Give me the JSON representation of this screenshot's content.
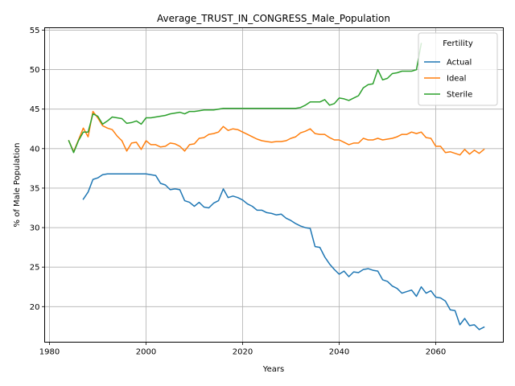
{
  "chart_data": {
    "type": "line",
    "title": "Average_TRUST_IN_CONGRESS_Male_Population",
    "xlabel": "Years",
    "ylabel": "% of Male Population",
    "xlim": [
      1979,
      2074
    ],
    "ylim": [
      15.5,
      55.3
    ],
    "xticks": [
      1980,
      2000,
      2020,
      2040,
      2060
    ],
    "yticks": [
      20,
      25,
      30,
      35,
      40,
      45,
      50,
      55
    ],
    "grid": true,
    "legend": {
      "title": "Fertility",
      "position": "top-right"
    },
    "series": [
      {
        "name": "Actual",
        "color": "#1f77b4",
        "x": [
          1987,
          1988,
          1989,
          1990,
          1991,
          1992,
          1993,
          1994,
          1995,
          1996,
          1997,
          1998,
          1999,
          2000,
          2001,
          2002,
          2003,
          2004,
          2005,
          2006,
          2007,
          2008,
          2009,
          2010,
          2011,
          2012,
          2013,
          2014,
          2015,
          2016,
          2017,
          2018,
          2019,
          2020,
          2021,
          2022,
          2023,
          2024,
          2025,
          2026,
          2027,
          2028,
          2029,
          2030,
          2031,
          2032,
          2033,
          2034,
          2035,
          2036,
          2037,
          2038,
          2039,
          2040,
          2041,
          2042,
          2043,
          2044,
          2045,
          2046,
          2047,
          2048,
          2049,
          2050,
          2051,
          2052,
          2053,
          2054,
          2055,
          2056,
          2057,
          2058,
          2059,
          2060,
          2061,
          2062,
          2063,
          2064,
          2065,
          2066,
          2067,
          2068,
          2069,
          2070
        ],
        "values": [
          33.6,
          34.5,
          36.1,
          36.3,
          36.7,
          36.8,
          36.8,
          36.8,
          36.8,
          36.8,
          36.8,
          36.8,
          36.8,
          36.8,
          36.7,
          36.6,
          35.6,
          35.4,
          34.8,
          34.9,
          34.8,
          33.4,
          33.2,
          32.7,
          33.2,
          32.6,
          32.5,
          33.1,
          33.4,
          34.9,
          33.8,
          34.0,
          33.8,
          33.5,
          33.0,
          32.7,
          32.2,
          32.2,
          31.9,
          31.8,
          31.6,
          31.7,
          31.2,
          30.9,
          30.5,
          30.2,
          30.0,
          29.9,
          27.6,
          27.5,
          26.3,
          25.4,
          24.7,
          24.1,
          24.5,
          23.8,
          24.4,
          24.3,
          24.7,
          24.8,
          24.6,
          24.5,
          23.4,
          23.2,
          22.6,
          22.3,
          21.7,
          21.9,
          22.1,
          21.3,
          22.5,
          21.7,
          22.0,
          21.2,
          21.1,
          20.7,
          19.6,
          19.5,
          17.7,
          18.5,
          17.6,
          17.7,
          17.1,
          17.4
        ]
      },
      {
        "name": "Ideal",
        "color": "#ff7f0e",
        "x": [
          1984,
          1985,
          1986,
          1987,
          1988,
          1989,
          1990,
          1991,
          1992,
          1993,
          1994,
          1995,
          1996,
          1997,
          1998,
          1999,
          2000,
          2001,
          2002,
          2003,
          2004,
          2005,
          2006,
          2007,
          2008,
          2009,
          2010,
          2011,
          2012,
          2013,
          2014,
          2015,
          2016,
          2017,
          2018,
          2019,
          2020,
          2021,
          2022,
          2023,
          2024,
          2025,
          2026,
          2027,
          2028,
          2029,
          2030,
          2031,
          2032,
          2033,
          2034,
          2035,
          2036,
          2037,
          2038,
          2039,
          2040,
          2041,
          2042,
          2043,
          2044,
          2045,
          2046,
          2047,
          2048,
          2049,
          2050,
          2051,
          2052,
          2053,
          2054,
          2055,
          2056,
          2057,
          2058,
          2059,
          2060,
          2061,
          2062,
          2063,
          2064,
          2065,
          2066,
          2067,
          2068,
          2069,
          2070
        ],
        "values": [
          41.0,
          39.6,
          41.1,
          42.6,
          41.5,
          44.7,
          43.9,
          42.9,
          42.6,
          42.4,
          41.6,
          41.0,
          39.7,
          40.7,
          40.8,
          39.9,
          41.0,
          40.5,
          40.5,
          40.2,
          40.3,
          40.7,
          40.6,
          40.3,
          39.7,
          40.5,
          40.6,
          41.3,
          41.4,
          41.8,
          41.9,
          42.1,
          42.8,
          42.3,
          42.5,
          42.4,
          42.1,
          41.8,
          41.5,
          41.2,
          41.0,
          40.9,
          40.8,
          40.9,
          40.9,
          41.0,
          41.3,
          41.5,
          42.0,
          42.2,
          42.5,
          41.9,
          41.8,
          41.8,
          41.4,
          41.1,
          41.1,
          40.8,
          40.5,
          40.7,
          40.7,
          41.3,
          41.1,
          41.1,
          41.3,
          41.1,
          41.2,
          41.3,
          41.5,
          41.8,
          41.8,
          42.1,
          41.9,
          42.1,
          41.4,
          41.3,
          40.3,
          40.3,
          39.5,
          39.6,
          39.4,
          39.2,
          39.9,
          39.3,
          39.8,
          39.4,
          39.9
        ]
      },
      {
        "name": "Sterile",
        "color": "#2ca02c",
        "x": [
          1984,
          1985,
          1986,
          1987,
          1988,
          1989,
          1990,
          1991,
          1992,
          1993,
          1994,
          1995,
          1996,
          1997,
          1998,
          1999,
          2000,
          2001,
          2002,
          2003,
          2004,
          2005,
          2006,
          2007,
          2008,
          2009,
          2010,
          2011,
          2012,
          2013,
          2014,
          2015,
          2016,
          2017,
          2018,
          2019,
          2020,
          2021,
          2022,
          2023,
          2024,
          2025,
          2026,
          2027,
          2028,
          2029,
          2030,
          2031,
          2032,
          2033,
          2034,
          2035,
          2036,
          2037,
          2038,
          2039,
          2040,
          2041,
          2042,
          2043,
          2044,
          2045,
          2046,
          2047,
          2048,
          2049,
          2050,
          2051,
          2052,
          2053,
          2054,
          2055,
          2056,
          2057
        ],
        "values": [
          41.0,
          39.5,
          41.0,
          42.1,
          42.1,
          44.4,
          44.1,
          43.1,
          43.5,
          44.0,
          43.9,
          43.8,
          43.2,
          43.3,
          43.5,
          43.1,
          43.9,
          43.9,
          44.0,
          44.1,
          44.2,
          44.4,
          44.5,
          44.6,
          44.4,
          44.7,
          44.7,
          44.8,
          44.9,
          44.9,
          44.9,
          45.0,
          45.1,
          45.1,
          45.1,
          45.1,
          45.1,
          45.1,
          45.1,
          45.1,
          45.1,
          45.1,
          45.1,
          45.1,
          45.1,
          45.1,
          45.1,
          45.1,
          45.2,
          45.5,
          45.9,
          45.9,
          45.9,
          46.2,
          45.5,
          45.7,
          46.4,
          46.3,
          46.1,
          46.4,
          46.7,
          47.7,
          48.1,
          48.2,
          50.0,
          48.7,
          48.9,
          49.5,
          49.6,
          49.8,
          49.8,
          49.8,
          50.0,
          53.3
        ]
      }
    ]
  }
}
